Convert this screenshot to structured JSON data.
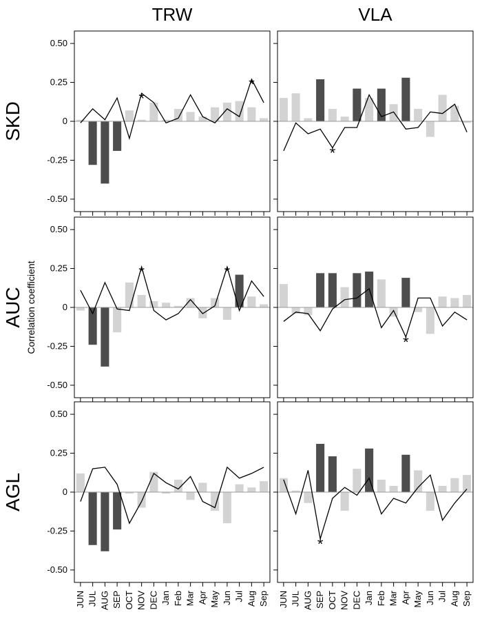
{
  "chart_data": {
    "type": "bar",
    "columns": [
      "TRW",
      "VLA"
    ],
    "rows": [
      "SKD",
      "AUC",
      "AGL"
    ],
    "ylabel": "Correlation coefficient",
    "ylim": [
      -0.58,
      0.58
    ],
    "yticks": [
      0.5,
      0.25,
      0,
      -0.25,
      -0.5
    ],
    "ytick_labels": [
      "0.50",
      "0.25",
      "0",
      "-0.25",
      "-0.50"
    ],
    "categories": [
      "JUN",
      "JUL",
      "AUG",
      "SEP",
      "OCT",
      "NOV",
      "DEC",
      "Jan",
      "Feb",
      "Mar",
      "Apr",
      "May",
      "Jun",
      "Jul",
      "Aug",
      "Sep"
    ],
    "colors": {
      "significant": "#4d4d4d",
      "nonsignificant": "#d3d3d3",
      "line": "#000000",
      "zero_line": "#999999"
    },
    "star_symbol": "*",
    "panels": [
      {
        "row": "SKD",
        "column": "TRW",
        "bars": [
          0.01,
          -0.28,
          -0.4,
          -0.19,
          0.07,
          0.01,
          0.12,
          0.01,
          0.08,
          0.06,
          0.03,
          0.09,
          0.12,
          0.13,
          0.09,
          0.02
        ],
        "significant": [
          1,
          2,
          3
        ],
        "line": [
          -0.01,
          0.08,
          0.01,
          0.15,
          -0.11,
          0.18,
          0.12,
          -0.01,
          0.02,
          0.17,
          0.03,
          -0.01,
          0.08,
          0.03,
          0.27,
          0.12
        ],
        "stars": [
          5,
          14
        ]
      },
      {
        "row": "SKD",
        "column": "VLA",
        "bars": [
          0.15,
          0.18,
          0.02,
          0.27,
          0.08,
          0.03,
          0.21,
          0.15,
          0.21,
          0.11,
          0.28,
          0.08,
          -0.1,
          0.17,
          0.1,
          -0.01
        ],
        "significant": [
          3,
          6,
          8,
          10
        ],
        "line": [
          -0.19,
          -0.01,
          -0.08,
          -0.05,
          -0.17,
          -0.04,
          -0.04,
          0.17,
          0.03,
          0.06,
          -0.05,
          -0.04,
          0.06,
          0.05,
          0.11,
          -0.07
        ],
        "stars": [
          4
        ]
      },
      {
        "row": "AUC",
        "column": "TRW",
        "bars": [
          -0.02,
          -0.24,
          -0.38,
          -0.16,
          0.16,
          0.08,
          0.04,
          0.03,
          0.01,
          0.06,
          -0.07,
          0.06,
          -0.08,
          0.21,
          0.07,
          0.02
        ],
        "significant": [
          1,
          2,
          13
        ],
        "line": [
          0.11,
          -0.04,
          0.16,
          -0.01,
          -0.02,
          0.26,
          -0.02,
          -0.08,
          -0.04,
          0.05,
          -0.04,
          0.01,
          0.26,
          -0.02,
          0.17,
          0.07
        ],
        "stars": [
          5,
          12
        ]
      },
      {
        "row": "AUC",
        "column": "VLA",
        "bars": [
          0.15,
          -0.04,
          -0.05,
          0.22,
          0.22,
          0.13,
          0.22,
          0.23,
          0.18,
          -0.06,
          0.19,
          -0.03,
          -0.17,
          0.07,
          0.06,
          0.08
        ],
        "significant": [
          3,
          4,
          6,
          7,
          10
        ],
        "line": [
          -0.09,
          -0.03,
          -0.04,
          -0.15,
          -0.01,
          0.05,
          0.06,
          0.12,
          -0.13,
          -0.02,
          -0.19,
          0.06,
          0.06,
          -0.12,
          -0.03,
          -0.08
        ],
        "stars": [
          10
        ]
      },
      {
        "row": "AGL",
        "column": "TRW",
        "bars": [
          0.12,
          -0.34,
          -0.38,
          -0.24,
          -0.01,
          -0.1,
          0.13,
          -0.01,
          0.08,
          -0.05,
          0.06,
          -0.12,
          -0.2,
          0.05,
          0.03,
          0.07
        ],
        "significant": [
          1,
          2,
          3
        ],
        "line": [
          -0.06,
          0.15,
          0.16,
          0.05,
          -0.2,
          -0.06,
          0.12,
          0.06,
          0.02,
          0.1,
          -0.06,
          -0.1,
          0.16,
          0.09,
          0.12,
          0.16
        ],
        "stars": []
      },
      {
        "row": "AGL",
        "column": "VLA",
        "bars": [
          0.09,
          0.01,
          -0.07,
          0.31,
          0.23,
          -0.12,
          0.15,
          0.28,
          0.08,
          0.04,
          0.24,
          0.14,
          -0.12,
          0.04,
          0.09,
          0.11
        ],
        "significant": [
          3,
          4,
          7,
          10
        ],
        "line": [
          0.08,
          -0.14,
          0.14,
          -0.3,
          -0.04,
          0.03,
          -0.02,
          0.09,
          -0.14,
          -0.04,
          -0.07,
          0.03,
          0.11,
          -0.18,
          -0.07,
          0.02
        ],
        "stars": [
          3
        ]
      }
    ]
  }
}
